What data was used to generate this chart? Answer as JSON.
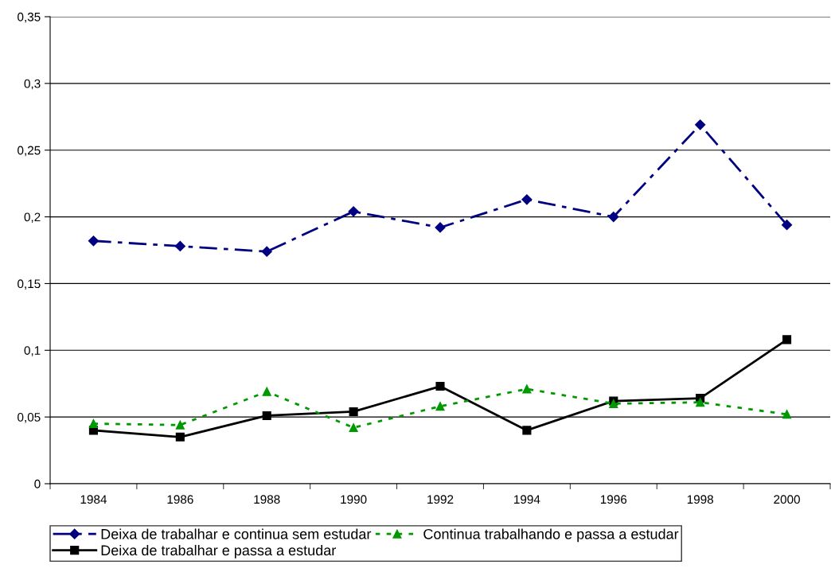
{
  "chart_data": {
    "type": "line",
    "categories": [
      "1984",
      "1986",
      "1988",
      "1990",
      "1992",
      "1994",
      "1996",
      "1998",
      "2000"
    ],
    "series": [
      {
        "name": "Deixa de trabalhar e continua sem estudar",
        "color": "#000080",
        "marker": "diamond",
        "line_style": "dashdot",
        "values": [
          0.182,
          0.178,
          0.174,
          0.204,
          0.192,
          0.213,
          0.2,
          0.269,
          0.194
        ]
      },
      {
        "name": "Deixa de trabalhar e passa a estudar",
        "color": "#000000",
        "marker": "square",
        "line_style": "solid",
        "values": [
          0.04,
          0.035,
          0.051,
          0.054,
          0.073,
          0.04,
          0.062,
          0.064,
          0.108
        ]
      },
      {
        "name": "Continua trabalhando e passa a estudar",
        "color": "#009900",
        "marker": "triangle",
        "line_style": "dotted",
        "values": [
          0.045,
          0.044,
          0.069,
          0.042,
          0.058,
          0.071,
          0.06,
          0.061,
          0.052
        ]
      }
    ],
    "ylim": [
      0,
      0.35
    ],
    "yticks": [
      {
        "value": 0,
        "label": "0"
      },
      {
        "value": 0.05,
        "label": "0,05"
      },
      {
        "value": 0.1,
        "label": "0,1"
      },
      {
        "value": 0.15,
        "label": "0,15"
      },
      {
        "value": 0.2,
        "label": "0,2"
      },
      {
        "value": 0.25,
        "label": "0,25"
      },
      {
        "value": 0.3,
        "label": "0,3"
      },
      {
        "value": 0.35,
        "label": "0,35"
      }
    ],
    "grid": "y",
    "legend": "bottom"
  }
}
